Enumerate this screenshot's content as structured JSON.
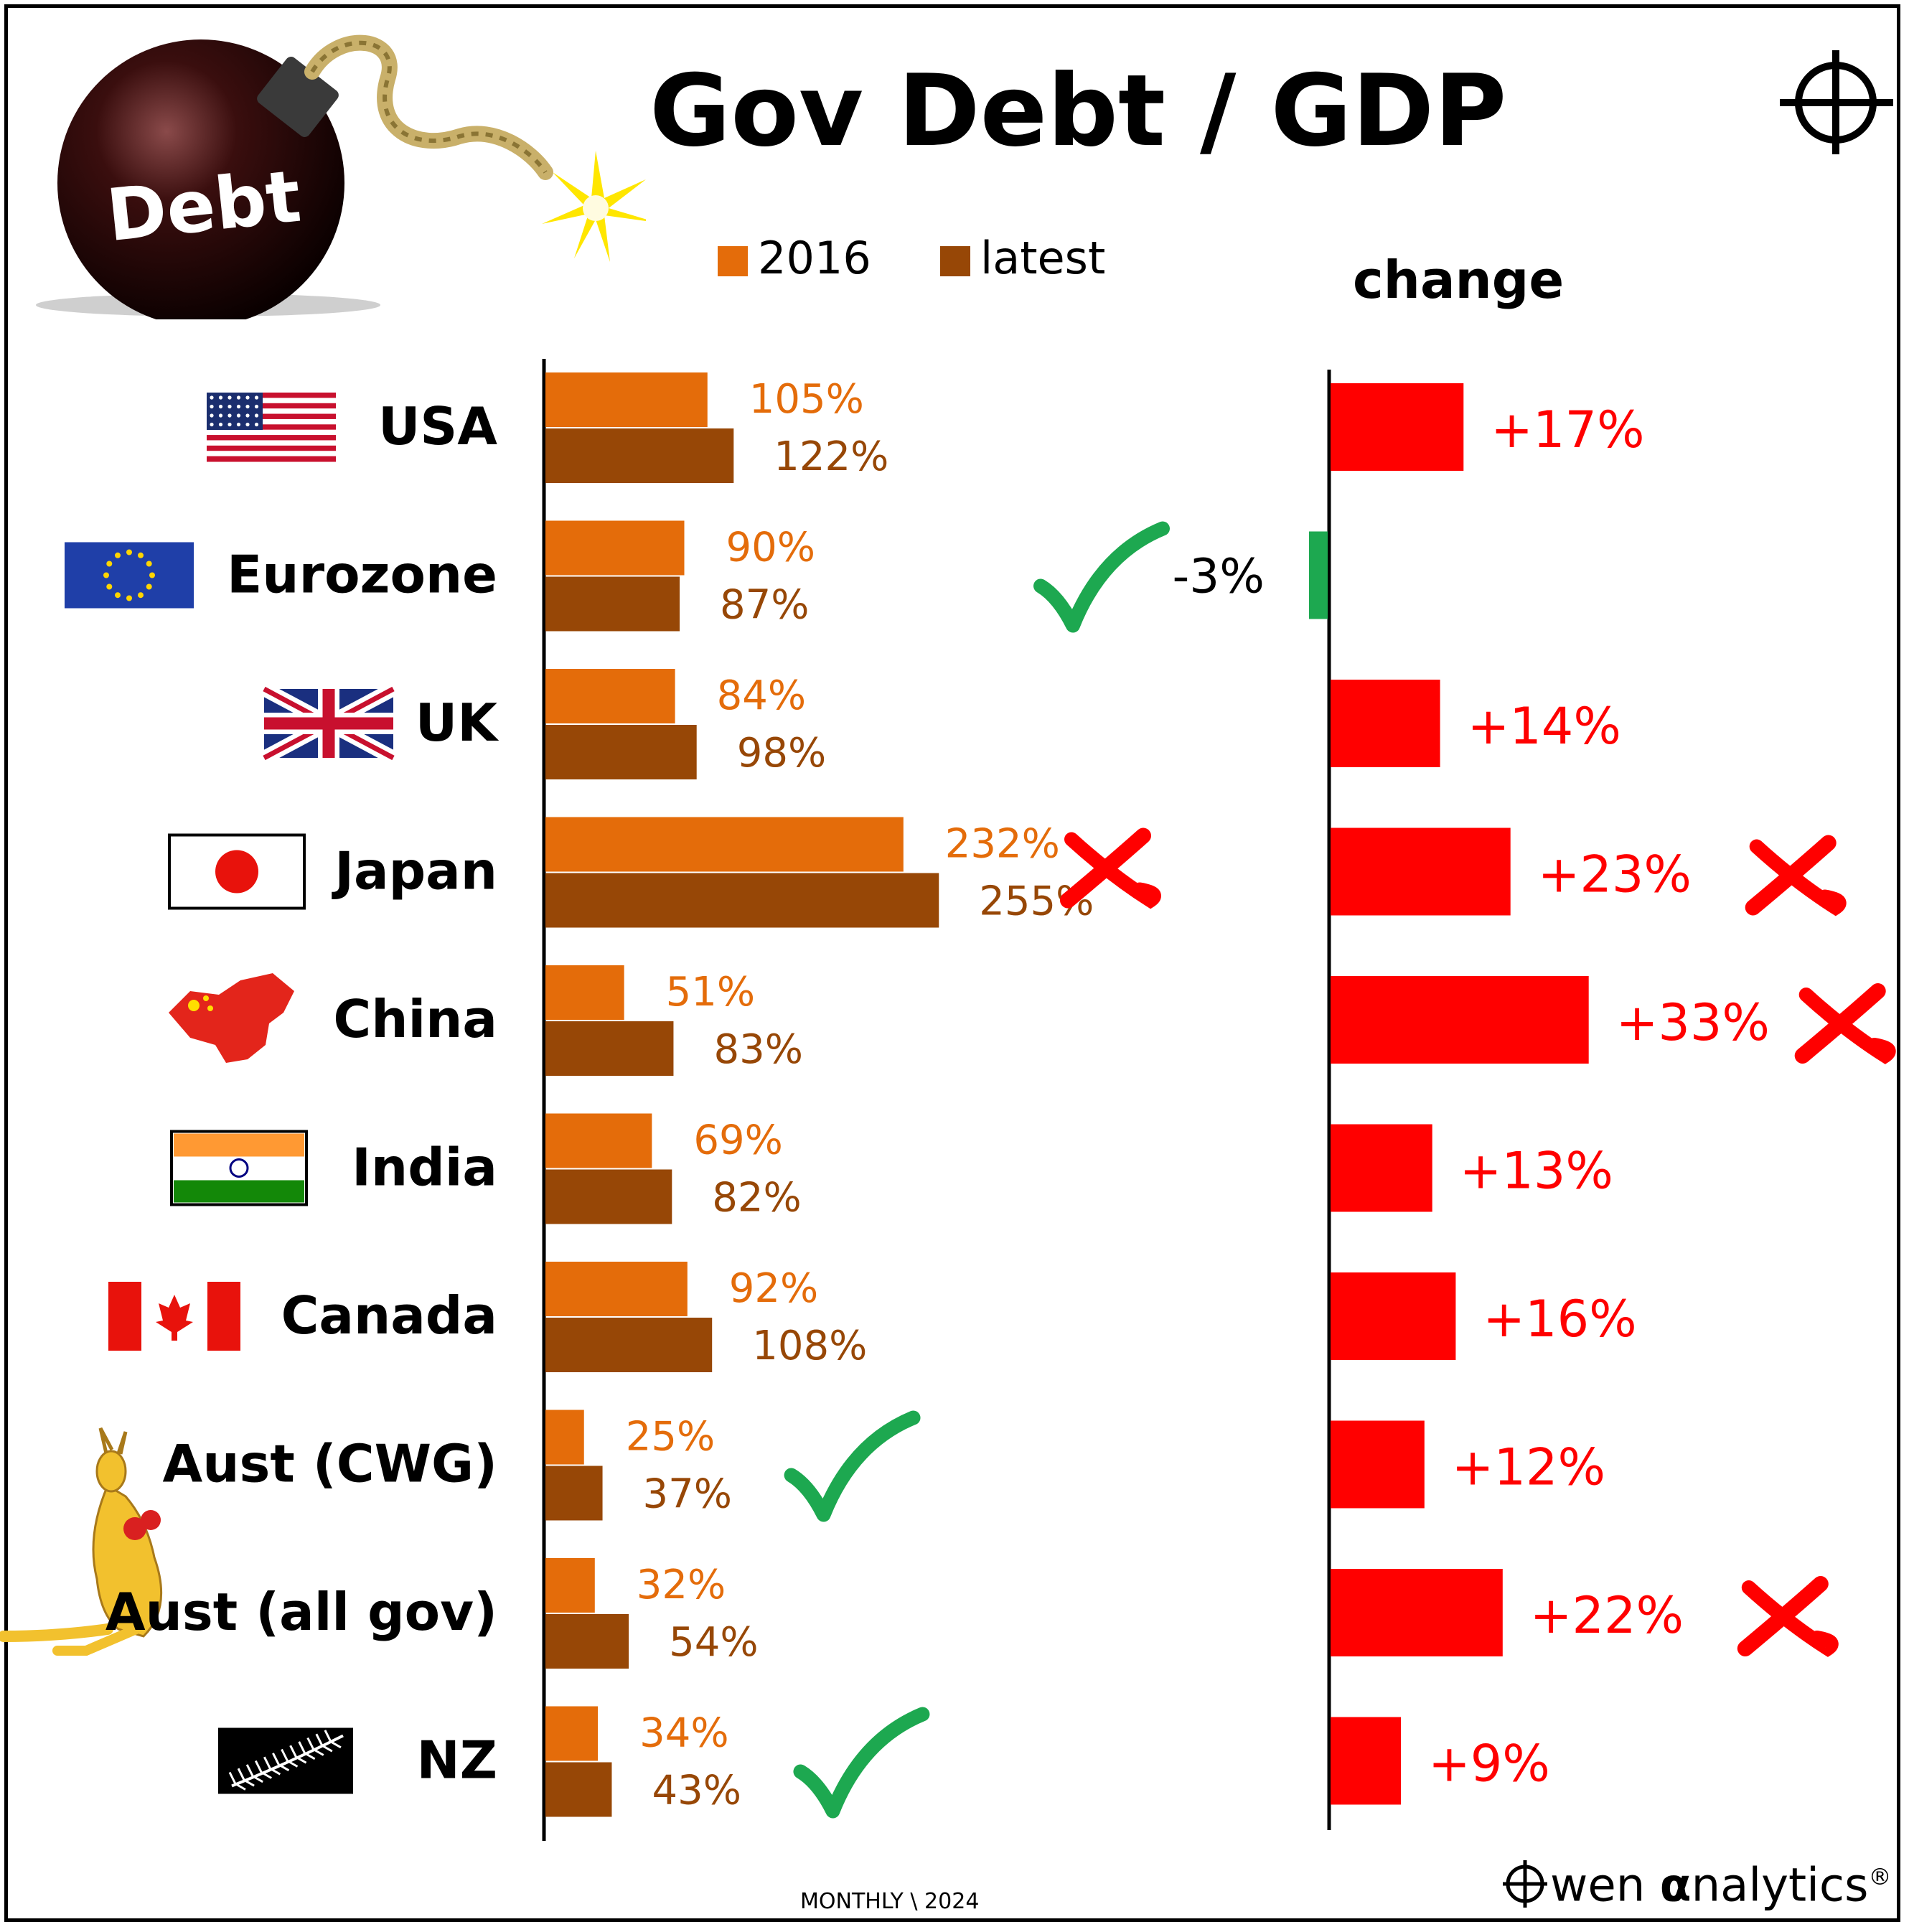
{
  "title": "Gov Debt / GDP",
  "logo_text": "Debt",
  "legend": [
    {
      "label": "2016",
      "color": "#E46C0A"
    },
    {
      "label": "latest",
      "color": "#974706"
    }
  ],
  "change_header": "change",
  "footer": {
    "monthly": "MONTHLY \\ 2024",
    "brand": "wen",
    "brand_alpha": "α",
    "brand_tail": "nalytics",
    "registered": "®"
  },
  "colors": {
    "bar_2016": "#E46C0A",
    "bar_latest": "#974706",
    "change_positive": "#FF0000",
    "change_negative": "#1DA850",
    "check": "#1DA850",
    "cross": "#FF0000"
  },
  "chart_data": {
    "type": "bar",
    "orientation": "horizontal",
    "categories": [
      "USA",
      "Eurozone",
      "UK",
      "Japan",
      "China",
      "India",
      "Canada",
      "Aust (CWG)",
      "Aust (all gov)",
      "NZ"
    ],
    "series": [
      {
        "name": "2016",
        "values": [
          105,
          90,
          84,
          232,
          51,
          69,
          92,
          25,
          32,
          34
        ],
        "labels": [
          "105%",
          "90%",
          "84%",
          "232%",
          "51%",
          "69%",
          "92%",
          "25%",
          "32%",
          "34%"
        ]
      },
      {
        "name": "latest",
        "values": [
          122,
          87,
          98,
          255,
          83,
          82,
          108,
          37,
          54,
          43
        ],
        "labels": [
          "122%",
          "87%",
          "98%",
          "255%",
          "83%",
          "82%",
          "108%",
          "37%",
          "54%",
          "43%"
        ]
      }
    ],
    "change": {
      "values": [
        17,
        -3,
        14,
        23,
        33,
        13,
        16,
        12,
        22,
        9
      ],
      "labels": [
        "+17%",
        "-3%",
        "+14%",
        "+23%",
        "+33%",
        "+13%",
        "+16%",
        "+12%",
        "+22%",
        "+9%"
      ]
    },
    "debt_marks": [
      "none",
      "check",
      "none",
      "cross",
      "none",
      "none",
      "none",
      "check",
      "none",
      "check"
    ],
    "change_marks": [
      "none",
      "none",
      "none",
      "cross",
      "cross",
      "none",
      "none",
      "none",
      "cross",
      "none"
    ],
    "flags": [
      "usa-flag",
      "eu-flag",
      "uk-flag",
      "japan-flag",
      "china-map",
      "india-flag",
      "canada-flag",
      "kangaroo",
      "kangaroo",
      "nz-fern-flag"
    ],
    "unit": "% of GDP"
  }
}
